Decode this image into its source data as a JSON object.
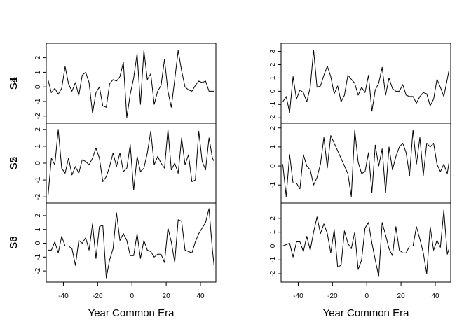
{
  "chart_data": [
    {
      "type": "line",
      "layout": "stacked-panels",
      "column": "left",
      "xlabel": "Year Common Era",
      "xlim": [
        -50,
        49
      ],
      "xticks": [
        -40,
        -20,
        0,
        20,
        40
      ],
      "xtick_labels": [
        "-40",
        "-20",
        "0",
        "20",
        "40"
      ],
      "x": [
        -49,
        -47,
        -45,
        -43,
        -41,
        -39,
        -37,
        -35,
        -33,
        -31,
        -29,
        -27,
        -25,
        -23,
        -21,
        -19,
        -17,
        -15,
        -13,
        -11,
        -9,
        -7,
        -5,
        -3,
        -1,
        1,
        3,
        5,
        7,
        9,
        11,
        13,
        15,
        17,
        19,
        21,
        23,
        25,
        27,
        29,
        31,
        33,
        35,
        37,
        39,
        41,
        43,
        45,
        47,
        48
      ],
      "panels": [
        {
          "ylabel": "S1",
          "ylim": [
            -2.3,
            2.8
          ],
          "yticks": [
            -2,
            -1,
            0,
            1,
            2
          ],
          "ytick_labels": [
            "-2",
            "-1",
            "0",
            "1",
            "2"
          ],
          "values": [
            0.5,
            -0.4,
            -0.1,
            -0.5,
            -0.1,
            1.4,
            0.2,
            -0.3,
            0.3,
            -0.6,
            0.8,
            1.0,
            0.3,
            -1.8,
            -0.4,
            0.0,
            -1.3,
            -1.4,
            0.2,
            0.5,
            0.4,
            0.7,
            1.7,
            -2.1,
            -0.5,
            0.6,
            2.3,
            -1.2,
            2.5,
            0.5,
            0.9,
            -1.2,
            -0.3,
            0.1,
            1.9,
            -0.3,
            -1.4,
            0.5,
            2.5,
            1.1,
            0.0,
            -0.2,
            -0.3,
            0.1,
            0.4,
            0.3,
            0.4,
            -0.3,
            -0.3,
            -0.3
          ]
        },
        {
          "ylabel": "S2",
          "ylim": [
            -2.2,
            2.2
          ],
          "yticks": [
            -2,
            -1,
            0,
            1,
            2
          ],
          "ytick_labels": [
            "-2",
            "-1",
            "0",
            "1",
            "2"
          ],
          "values": [
            -2.0,
            0.3,
            -0.1,
            2.0,
            -0.3,
            -0.6,
            0.3,
            -0.7,
            -0.2,
            -0.6,
            0.2,
            0.1,
            -0.1,
            0.3,
            0.9,
            0.3,
            -1.1,
            -0.8,
            -0.2,
            0.6,
            -0.2,
            0.6,
            -0.5,
            -0.3,
            1.1,
            -1.6,
            0.4,
            -0.5,
            -0.3,
            0.6,
            1.9,
            -0.1,
            0.4,
            0.0,
            -0.3,
            2.0,
            -0.4,
            0.0,
            -0.6,
            1.5,
            -0.1,
            0.5,
            -1.1,
            -1.0,
            1.9,
            0.1,
            -0.4,
            1.5,
            0.3,
            0.1
          ]
        },
        {
          "ylabel": "S3",
          "ylim": [
            -2.6,
            2.7
          ],
          "yticks": [
            -2,
            -1,
            0,
            1,
            2
          ],
          "ytick_labels": [
            "-2",
            "-1",
            "0",
            "1",
            "2"
          ],
          "values": [
            -0.5,
            -0.5,
            0.1,
            -0.7,
            0.5,
            -0.2,
            -0.2,
            -0.4,
            -1.6,
            0.2,
            0.0,
            0.4,
            -0.5,
            1.4,
            -1.1,
            1.2,
            1.3,
            -2.5,
            -1.2,
            -0.4,
            2.2,
            0.2,
            0.7,
            0.2,
            -0.9,
            -0.9,
            0.7,
            -1.1,
            0.2,
            -0.5,
            -0.6,
            -1.0,
            -0.8,
            -0.8,
            -1.4,
            1.1,
            0.1,
            -1.4,
            1.7,
            1.6,
            -0.5,
            -0.6,
            -0.7,
            0.1,
            0.7,
            1.1,
            1.5,
            2.5,
            -0.5,
            -1.7
          ]
        }
      ]
    },
    {
      "type": "line",
      "layout": "stacked-panels",
      "column": "right",
      "xlabel": "Year Common Era",
      "xlim": [
        -50,
        49
      ],
      "xticks": [
        -40,
        -20,
        0,
        20,
        40
      ],
      "xtick_labels": [
        "-40",
        "-20",
        "0",
        "20",
        "40"
      ],
      "x": [
        -49,
        -47,
        -45,
        -43,
        -41,
        -39,
        -37,
        -35,
        -33,
        -31,
        -29,
        -27,
        -25,
        -23,
        -21,
        -19,
        -17,
        -15,
        -13,
        -11,
        -9,
        -7,
        -5,
        -3,
        -1,
        1,
        3,
        5,
        7,
        9,
        11,
        13,
        15,
        17,
        19,
        21,
        23,
        25,
        27,
        29,
        31,
        33,
        35,
        37,
        39,
        41,
        43,
        45,
        47,
        48
      ],
      "panels": [
        {
          "ylabel": "S4",
          "ylim": [
            -2.2,
            3.4
          ],
          "yticks": [
            -2,
            -1,
            0,
            1,
            2,
            3
          ],
          "ytick_labels": [
            "-2",
            "-1",
            "0",
            "1",
            "2",
            "3"
          ],
          "values": [
            -0.8,
            -0.4,
            -1.6,
            1.1,
            -0.6,
            0.1,
            -0.1,
            -0.8,
            0.3,
            3.1,
            0.3,
            0.4,
            1.2,
            1.9,
            1.1,
            -0.2,
            0.4,
            -0.8,
            -0.3,
            1.2,
            0.9,
            0.6,
            -0.3,
            0.3,
            -0.1,
            1.2,
            -1.5,
            0.1,
            0.6,
            1.8,
            -0.3,
            1.0,
            0.2,
            0.0,
            0.0,
            0.5,
            -0.3,
            -0.4,
            -0.4,
            -0.9,
            -0.4,
            -0.1,
            -0.2,
            -1.1,
            -0.6,
            0.9,
            0.3,
            -0.4,
            0.9,
            1.6
          ]
        },
        {
          "ylabel": "S5",
          "ylim": [
            -1.8,
            2.1
          ],
          "yticks": [
            -1,
            0,
            1,
            2
          ],
          "ytick_labels": [
            "-1",
            "0",
            "1",
            "2"
          ],
          "values": [
            0.1,
            -1.6,
            0.6,
            -0.9,
            -0.9,
            -1.2,
            0.6,
            0.0,
            -0.2,
            -1.0,
            -0.6,
            0.1,
            1.5,
            -0.1,
            1.6,
            1.2,
            0.8,
            0.4,
            0.0,
            -0.4,
            -1.6,
            1.9,
            0.2,
            -0.4,
            -0.3,
            0.7,
            -1.4,
            1.1,
            0.0,
            0.9,
            -1.4,
            1.0,
            -0.2,
            0.5,
            1.0,
            1.2,
            0.7,
            -0.5,
            1.9,
            0.1,
            1.5,
            -0.5,
            1.2,
            1.0,
            1.2,
            0.1,
            -0.3,
            0.1,
            -0.4,
            0.2
          ]
        },
        {
          "ylabel": "S6",
          "ylim": [
            -2.4,
            2.9
          ],
          "yticks": [
            -2,
            -1,
            0,
            1,
            2
          ],
          "ytick_labels": [
            "-2",
            "-1",
            "0",
            "1",
            "2"
          ],
          "values": [
            0.0,
            0.1,
            0.2,
            -0.8,
            0.3,
            0.3,
            -0.4,
            0.7,
            -0.3,
            1.0,
            2.1,
            0.9,
            1.6,
            0.9,
            -0.5,
            1.2,
            -1.5,
            -1.4,
            1.1,
            0.2,
            -0.2,
            1.0,
            -1.7,
            -1.0,
            1.3,
            1.7,
            0.2,
            -1.0,
            -2.2,
            1.7,
            0.8,
            -0.2,
            -0.7,
            1.4,
            -0.3,
            -0.5,
            -0.5,
            0.0,
            0.0,
            1.4,
            0.5,
            -0.5,
            -2.0,
            1.4,
            -0.3,
            0.4,
            -0.1,
            2.6,
            -0.6,
            -0.2
          ]
        }
      ]
    }
  ]
}
